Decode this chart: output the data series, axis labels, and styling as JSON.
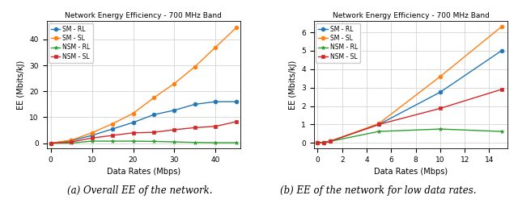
{
  "title": "Network Energy Efficiency - 700 MHz Band",
  "xlabel": "Data Rates (Mbps)",
  "ylabel": "EE (Mbits/kJ)",
  "caption_a": "(a) Overall EE of the network.",
  "caption_b": "(b) EE of the network for low data rates.",
  "plot_a": {
    "x": [
      0,
      5,
      10,
      15,
      20,
      25,
      30,
      35,
      40,
      45
    ],
    "SM_RL": [
      0,
      1.0,
      3.0,
      5.5,
      8.0,
      11.0,
      12.7,
      15.0,
      16.0,
      16.0
    ],
    "SM_SL": [
      0,
      1.2,
      4.0,
      7.5,
      11.5,
      17.5,
      23.0,
      29.5,
      37.0,
      44.5
    ],
    "NSM_RL": [
      0,
      0.05,
      0.8,
      0.8,
      0.8,
      0.7,
      0.5,
      0.3,
      0.2,
      0.2
    ],
    "NSM_SL": [
      0,
      0.5,
      2.0,
      3.0,
      4.0,
      4.2,
      5.2,
      6.0,
      6.5,
      8.3
    ],
    "xlim": [
      -1,
      46
    ],
    "ylim": [
      -2,
      47
    ],
    "xticks": [
      0,
      10,
      20,
      30,
      40
    ]
  },
  "plot_b": {
    "x": [
      0,
      0.5,
      1,
      5,
      10,
      15
    ],
    "SM_RL": [
      0,
      0.03,
      0.08,
      1.0,
      2.75,
      5.0
    ],
    "SM_SL": [
      0,
      0.03,
      0.08,
      1.05,
      3.6,
      6.3
    ],
    "NSM_RL": [
      0,
      0.03,
      0.08,
      0.62,
      0.75,
      0.62
    ],
    "NSM_SL": [
      0,
      0.03,
      0.08,
      1.0,
      1.87,
      2.9
    ],
    "xlim": [
      -0.3,
      15.5
    ],
    "ylim": [
      -0.3,
      6.6
    ],
    "xticks": [
      0,
      2,
      4,
      6,
      8,
      10,
      12,
      14
    ]
  },
  "colors": {
    "SM_RL": "#1f77b4",
    "SM_SL": "#ff7f0e",
    "NSM_RL": "#2ca02c",
    "NSM_SL": "#d62728"
  },
  "markers": {
    "SM_RL": "o",
    "SM_SL": "o",
    "NSM_RL": "*",
    "NSM_SL": "s"
  },
  "legend_labels": {
    "SM_RL": "SM - RL",
    "SM_SL": "SM - SL",
    "NSM_RL": "NSM - RL",
    "NSM_SL": "NSM - SL"
  }
}
